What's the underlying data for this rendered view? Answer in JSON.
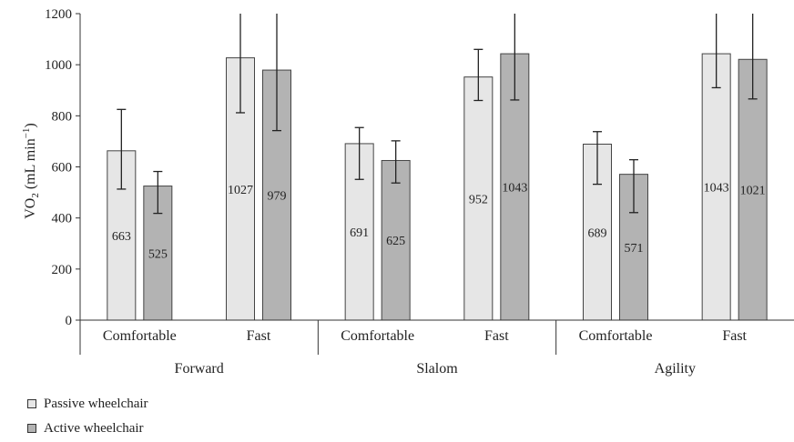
{
  "chart_data": {
    "type": "bar",
    "ylabel": "VO",
    "ylabel_sub": "2",
    "ylabel_units": " (mL min",
    "ylabel_sup": "−1",
    "ylabel_close": ")",
    "ylim": [
      0,
      1200
    ],
    "yticks": [
      "0",
      "200",
      "400",
      "600",
      "800",
      "1000",
      "1200"
    ],
    "groups": [
      {
        "name": "Forward",
        "categories": [
          "Comfortable",
          "Fast"
        ]
      },
      {
        "name": "Slalom",
        "categories": [
          "Comfortable",
          "Fast"
        ]
      },
      {
        "name": "Agility",
        "categories": [
          "Comfortable",
          "Fast"
        ]
      }
    ],
    "series": [
      {
        "name": "Passive wheelchair",
        "color": "#e6e6e6",
        "values": [
          663,
          1027,
          691,
          952,
          689,
          1043
        ],
        "labels": [
          "663",
          "1027",
          "691",
          "952",
          "689",
          "1043"
        ],
        "err_low": [
          513,
          812,
          551,
          860,
          532,
          910
        ],
        "err_high": [
          825,
          1200,
          754,
          1060,
          738,
          1200
        ]
      },
      {
        "name": "Active wheelchair",
        "color": "#b3b3b3",
        "values": [
          525,
          979,
          625,
          1043,
          571,
          1021
        ],
        "labels": [
          "525",
          "979",
          "625",
          "1043",
          "571",
          "1021"
        ],
        "err_low": [
          418,
          742,
          537,
          862,
          421,
          866
        ],
        "err_high": [
          582,
          1200,
          702,
          1200,
          628,
          1200
        ]
      }
    ],
    "legend_position": "bottom-left",
    "grid": false
  }
}
